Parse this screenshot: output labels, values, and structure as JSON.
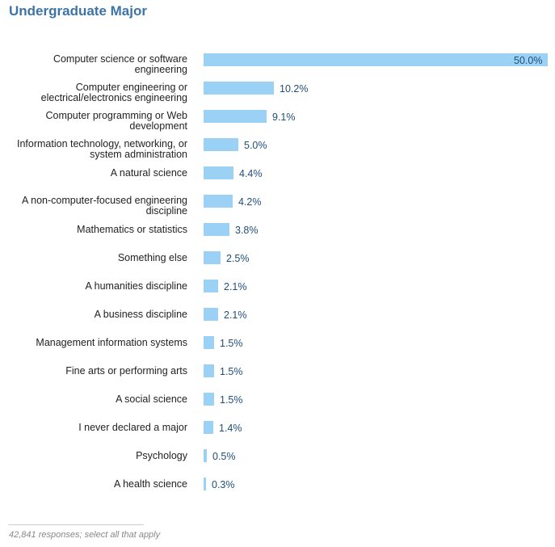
{
  "chart_data": {
    "type": "bar",
    "orientation": "horizontal",
    "title": "Undergraduate Major",
    "xlabel": "",
    "ylabel": "",
    "xlim": [
      0,
      50
    ],
    "unit": "%",
    "categories": [
      [
        "Computer science or software",
        "engineering"
      ],
      [
        "Computer engineering or",
        "electrical/electronics engineering"
      ],
      [
        "Computer programming or Web",
        "development"
      ],
      [
        "Information technology, networking, or",
        "system administration"
      ],
      [
        "A natural science"
      ],
      [
        "A non-computer-focused engineering",
        "discipline"
      ],
      [
        "Mathematics or statistics"
      ],
      [
        "Something else"
      ],
      [
        "A humanities discipline"
      ],
      [
        "A business discipline"
      ],
      [
        "Management information systems"
      ],
      [
        "Fine arts or performing arts"
      ],
      [
        "A social science"
      ],
      [
        "I never declared a major"
      ],
      [
        "Psychology"
      ],
      [
        "A health science"
      ]
    ],
    "values": [
      50.0,
      10.2,
      9.1,
      5.0,
      4.4,
      4.2,
      3.8,
      2.5,
      2.1,
      2.1,
      1.5,
      1.5,
      1.5,
      1.4,
      0.5,
      0.3
    ],
    "value_labels": [
      "50.0%",
      "10.2%",
      "9.1%",
      "5.0%",
      "4.4%",
      "4.2%",
      "3.8%",
      "2.5%",
      "2.1%",
      "2.1%",
      "1.5%",
      "1.5%",
      "1.5%",
      "1.4%",
      "0.5%",
      "0.3%"
    ],
    "footnote": "42,841 responses; select all that apply",
    "colors": {
      "bar": "#9bd1f5",
      "title": "#3c74a8",
      "value_text": "#1f4e79",
      "label_text": "#222222"
    }
  }
}
